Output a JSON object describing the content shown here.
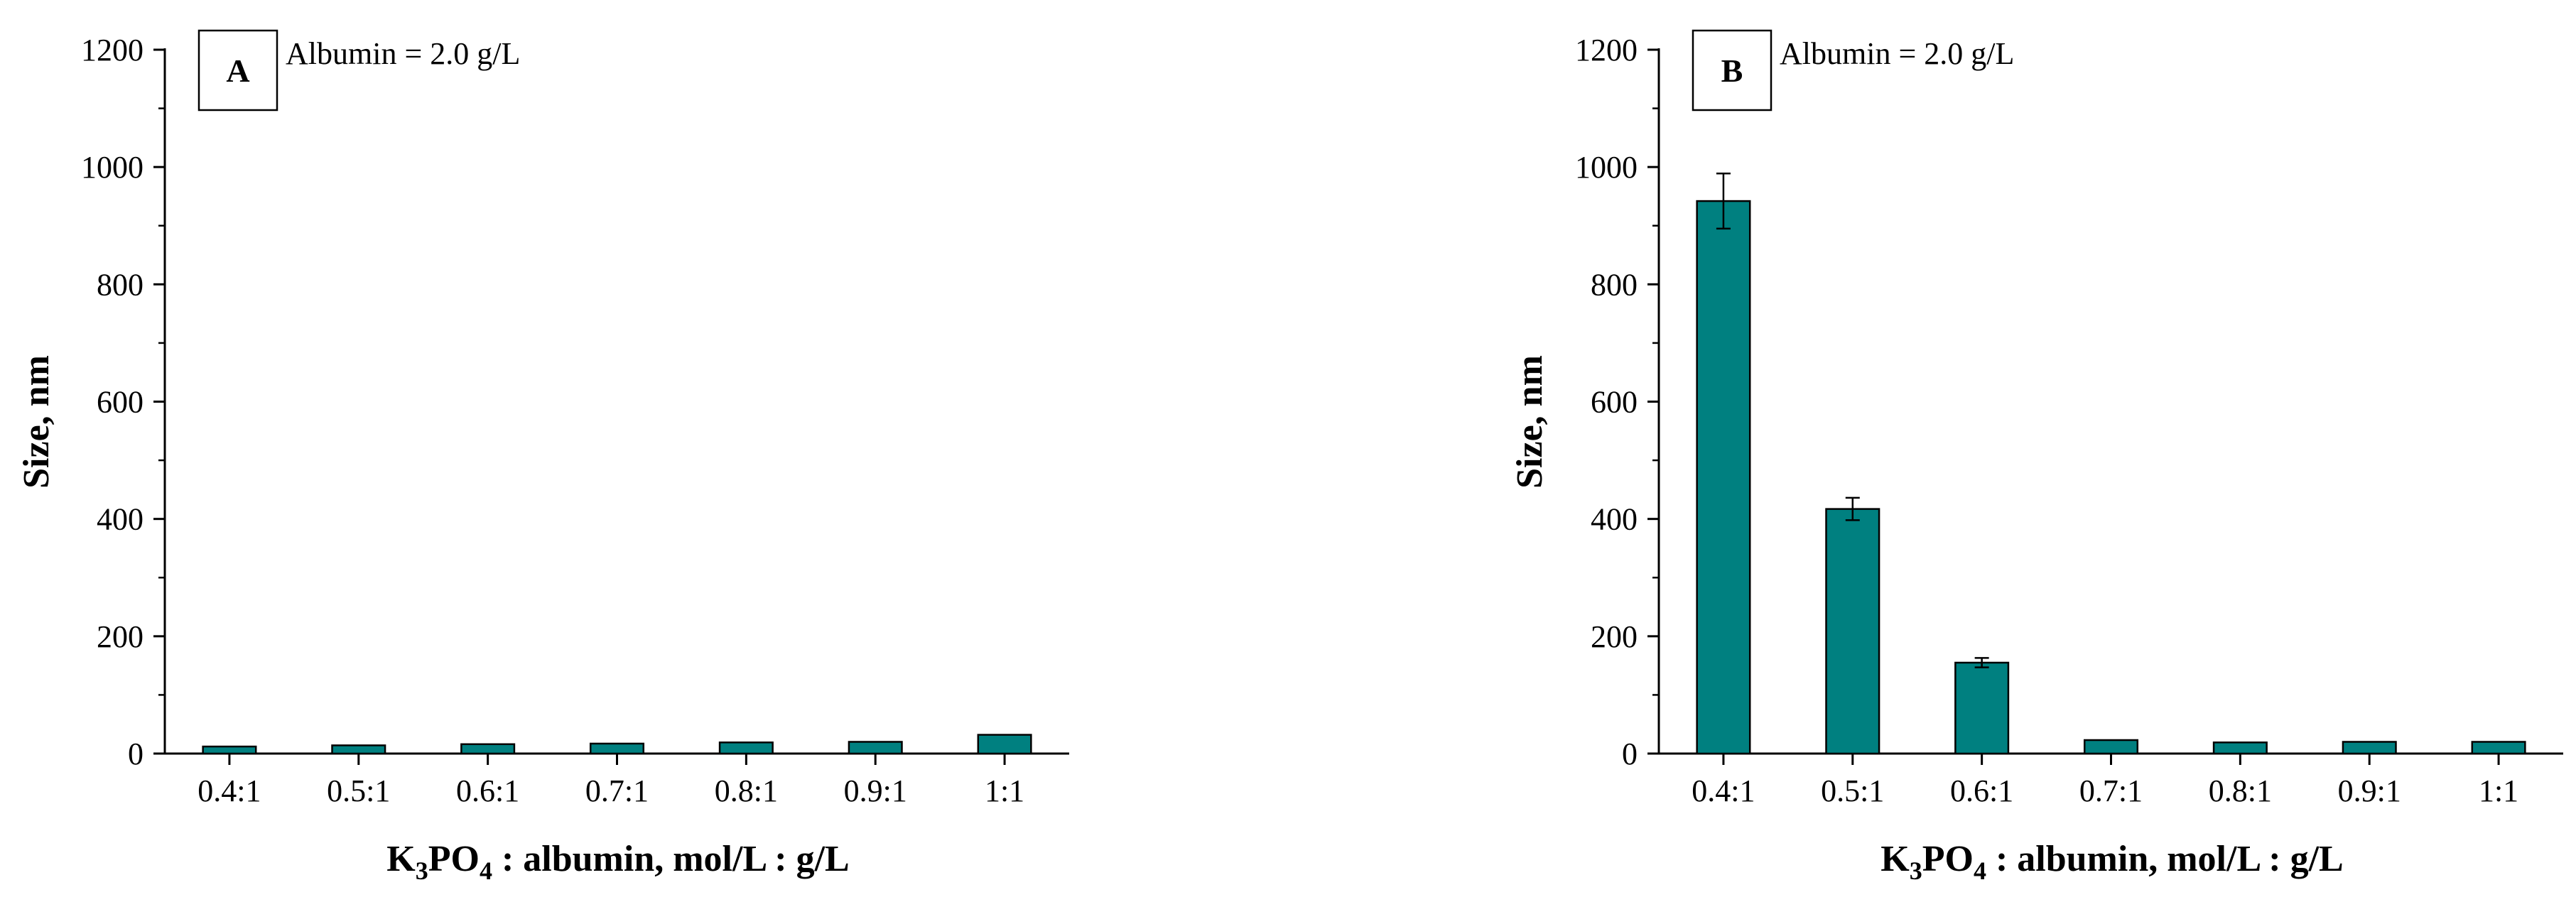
{
  "colors": {
    "bar_fill": "#008080",
    "bar_stroke": "#000000",
    "axis": "#000000"
  },
  "chart_data": [
    {
      "type": "bar",
      "panel_label": "A",
      "annotation": "Albumin = 2.0 g/L",
      "ylabel": "Size, nm",
      "xlabel": {
        "k": "K",
        "sub3": "3",
        "po": "PO",
        "sub4": "4",
        "rest": " : albumin, mol/L : g/L"
      },
      "categories": [
        "0.4:1",
        "0.5:1",
        "0.6:1",
        "0.7:1",
        "0.8:1",
        "0.9:1",
        "1:1"
      ],
      "values": [
        12,
        14,
        16,
        17,
        19,
        20,
        32
      ],
      "errors": [
        0,
        0,
        0,
        0,
        0,
        0,
        0
      ],
      "ylim": [
        0,
        1200
      ],
      "yticks": [
        0,
        200,
        400,
        600,
        800,
        1000,
        1200
      ],
      "grid": false
    },
    {
      "type": "bar",
      "panel_label": "B",
      "annotation": "Albumin = 2.0 g/L",
      "ylabel": "Size, nm",
      "xlabel": {
        "k": "K",
        "sub3": "3",
        "po": "PO",
        "sub4": "4",
        "rest": " : albumin, mol/L : g/L"
      },
      "categories": [
        "0.4:1",
        "0.5:1",
        "0.6:1",
        "0.7:1",
        "0.8:1",
        "0.9:1",
        "1:1"
      ],
      "values": [
        942,
        417,
        155,
        23,
        19,
        20,
        20
      ],
      "errors": [
        47,
        19,
        8,
        0,
        0,
        0,
        0
      ],
      "ylim": [
        0,
        1200
      ],
      "yticks": [
        0,
        200,
        400,
        600,
        800,
        1000,
        1200
      ],
      "grid": false
    }
  ]
}
